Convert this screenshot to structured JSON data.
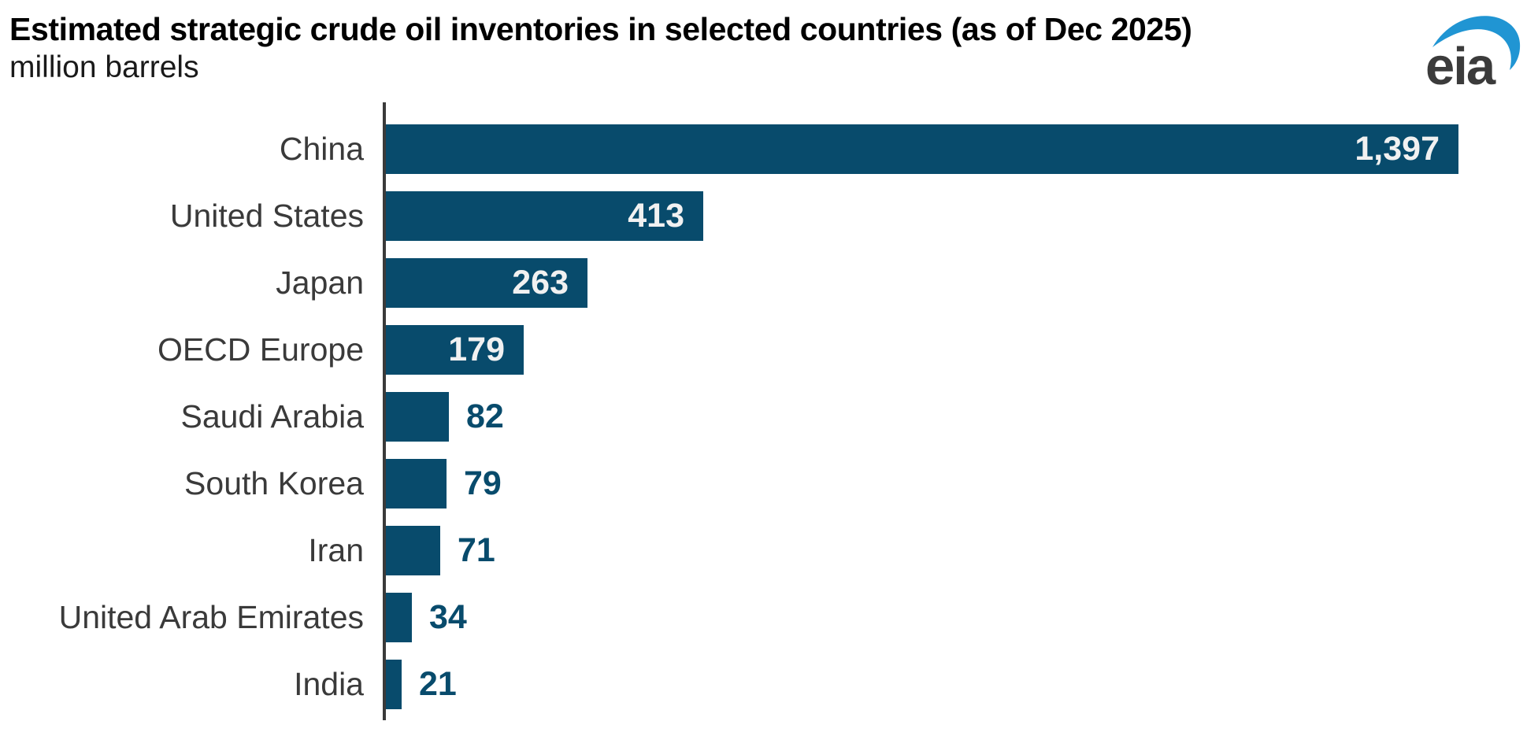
{
  "header": {
    "title": "Estimated strategic crude oil inventories in selected countries (as of Dec 2025)",
    "subtitle": "million barrels"
  },
  "logo": {
    "text": "eia",
    "swoosh_color": "#2095d3",
    "text_color": "#3b3b3b"
  },
  "colors": {
    "bar": "#084b6c",
    "axis": "#3a3a3a",
    "category_label": "#3a3a3a",
    "value_inside": "#f1f1f1",
    "value_outside": "#084b6c",
    "title": "#000000",
    "background": "#ffffff"
  },
  "chart_data": {
    "type": "bar",
    "orientation": "horizontal",
    "title": "Estimated strategic crude oil inventories in selected countries (as of Dec 2025)",
    "unit_label": "million barrels",
    "categories": [
      "China",
      "United States",
      "Japan",
      "OECD Europe",
      "Saudi Arabia",
      "South Korea",
      "Iran",
      "United Arab Emirates",
      "India"
    ],
    "values": [
      1397,
      413,
      263,
      179,
      82,
      79,
      71,
      34,
      21
    ],
    "value_labels": [
      "1,397",
      "413",
      "263",
      "179",
      "82",
      "79",
      "71",
      "34",
      "21"
    ],
    "xlim": [
      0,
      1430
    ],
    "grid": false,
    "legend": false,
    "value_label_placement": "inside bar end when value >= 100, outside bar end otherwise",
    "bars_sorted": "descending"
  }
}
